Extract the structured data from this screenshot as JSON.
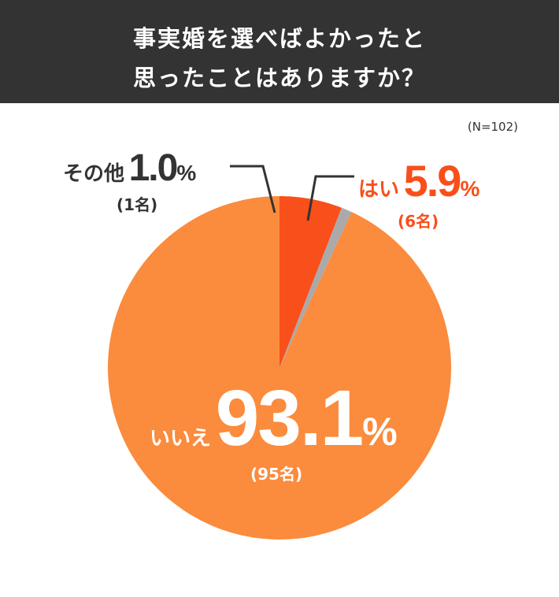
{
  "header": {
    "title_line1": "事実婚を選べばよかったと",
    "title_line2": "思ったことはありますか？",
    "background": "#333333"
  },
  "note": "(N=102)",
  "chart_data": {
    "type": "pie",
    "title": "事実婚を選べばよかったと思ったことはありますか？",
    "n": 102,
    "categories": [
      "はい",
      "その他",
      "いいえ"
    ],
    "values": [
      5.9,
      1.0,
      93.1
    ],
    "counts": [
      6,
      1,
      95
    ],
    "colors": [
      "#f94f1a",
      "#aaaaaa",
      "#fb8b3d"
    ],
    "unit": "%",
    "start_angle": "12 o'clock, clockwise"
  },
  "labels": {
    "yes": {
      "name": "はい",
      "value": "5.9",
      "unit": "%",
      "count": "(6名)"
    },
    "other": {
      "name": "その他",
      "value": "1.0",
      "unit": "%",
      "count": "(1名)"
    },
    "no": {
      "name": "いいえ",
      "value": "93.1",
      "unit": "%",
      "count": "(95名)"
    }
  }
}
